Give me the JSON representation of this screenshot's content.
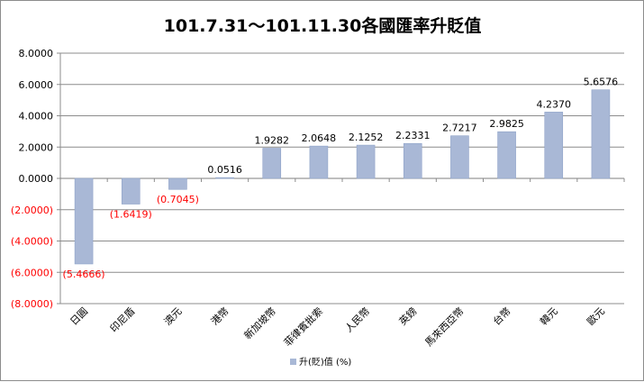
{
  "chart_data": {
    "type": "bar",
    "title": "101.7.31～101.11.30各國匯率升貶值",
    "categories": [
      "日圓",
      "印尼盾",
      "澳元",
      "港幣",
      "新加坡幣",
      "菲律賓批索",
      "人民幣",
      "英鎊",
      "馬來西亞幣",
      "台幣",
      "韓元",
      "歐元"
    ],
    "series": [
      {
        "name": "升(貶)值 (%)",
        "values": [
          -5.4666,
          -1.6419,
          -0.7045,
          0.0516,
          1.9282,
          2.0648,
          2.1252,
          2.2331,
          2.7217,
          2.9825,
          4.237,
          5.6576
        ],
        "labels": [
          "(5.4666)",
          "(1.6419)",
          "(0.7045)",
          "0.0516",
          "1.9282",
          "2.0648",
          "2.1252",
          "2.2331",
          "2.7217",
          "2.9825",
          "4.2370",
          "5.6576"
        ]
      }
    ],
    "ylim": [
      -8,
      8
    ],
    "yticks": [
      8,
      6,
      4,
      2,
      0,
      -2,
      -4,
      -6,
      -8
    ],
    "ytick_labels": [
      "8.0000",
      "6.0000",
      "4.0000",
      "2.0000",
      "0.0000",
      "(2.0000)",
      "(4.0000)",
      "(6.0000)",
      "(8.0000)"
    ],
    "grid": true,
    "legend": "bottom",
    "colors": {
      "bar": "#a9b8d6",
      "bar_stroke": "#8fa3c8",
      "negative_label": "#ff0000",
      "positive_label": "#000000",
      "negative_tick": "#ff0000",
      "grid": "#8c8c8c"
    }
  }
}
